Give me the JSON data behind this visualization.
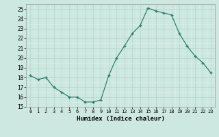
{
  "x": [
    0,
    1,
    2,
    3,
    4,
    5,
    6,
    7,
    8,
    9,
    10,
    11,
    12,
    13,
    14,
    15,
    16,
    17,
    18,
    19,
    20,
    21,
    22,
    23
  ],
  "y": [
    18.2,
    17.8,
    18.0,
    17.0,
    16.5,
    16.0,
    16.0,
    15.5,
    15.5,
    15.7,
    18.2,
    20.0,
    21.2,
    22.5,
    23.3,
    25.1,
    24.8,
    24.6,
    24.4,
    22.5,
    21.2,
    20.2,
    19.5,
    18.5
  ],
  "title": "",
  "xlabel": "Humidex (Indice chaleur)",
  "ylabel": "",
  "xlim": [
    -0.5,
    23.5
  ],
  "ylim": [
    15,
    25.5
  ],
  "yticks": [
    15,
    16,
    17,
    18,
    19,
    20,
    21,
    22,
    23,
    24,
    25
  ],
  "xticks": [
    0,
    1,
    2,
    3,
    4,
    5,
    6,
    7,
    8,
    9,
    10,
    11,
    12,
    13,
    14,
    15,
    16,
    17,
    18,
    19,
    20,
    21,
    22,
    23
  ],
  "line_color": "#2e7d6e",
  "bg_color": "#cde8e1",
  "grid_major_color": "#b8d8d0",
  "grid_minor_color": "#daf0ea",
  "marker": "+"
}
